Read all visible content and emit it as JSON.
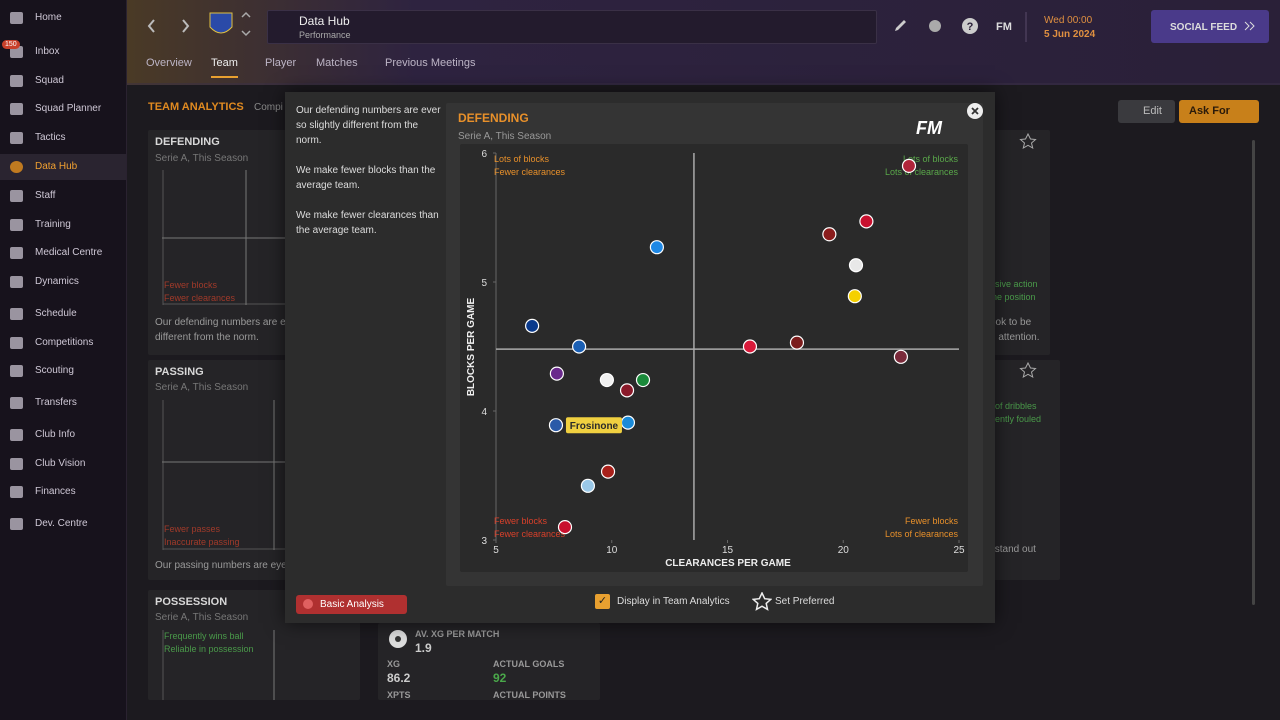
{
  "sidebar": {
    "badge": "150",
    "items": [
      "Home",
      "Inbox",
      "Squad",
      "Squad Planner",
      "Tactics",
      "Data Hub",
      "Staff",
      "Training",
      "Medical Centre",
      "Dynamics",
      "Schedule",
      "Competitions",
      "Scouting",
      "Transfers",
      "Club Info",
      "Club Vision",
      "Finances",
      "Dev. Centre"
    ],
    "active": 5
  },
  "topbar": {
    "title": "Data Hub",
    "subtitle": "Performance",
    "brand": "FM",
    "time": "Wed 00:00",
    "date": "5 Jun 2024",
    "social": "SOCIAL FEED"
  },
  "tabs": {
    "items": [
      "Overview",
      "Team",
      "Player",
      "Matches",
      "Previous Meetings"
    ],
    "active": 1
  },
  "background": {
    "heading": "TEAM ANALYTICS",
    "heading_more": "Compi",
    "edit": "Edit",
    "ask_for": "Ask For",
    "defending": {
      "title": "DEFENDING",
      "subtitle": "Serie A, This Season",
      "tag1": "Fewer blocks",
      "tag2": "Fewer clearances",
      "text1": "Our defending numbers are e",
      "text2": "different from the norm."
    },
    "passing": {
      "title": "PASSING",
      "subtitle": "Serie A, This Season",
      "tag1": "Fewer passes",
      "tag2": "Inaccurate passing",
      "text1": "Our passing numbers are eye"
    },
    "possession": {
      "title": "POSSESSION",
      "subtitle": "Serie A, This Season",
      "tag1": "Frequently wins ball",
      "tag2": "Reliable in possession"
    },
    "stats": {
      "xg_match_label": "AV. XG PER MATCH",
      "xg_match": "1.9",
      "xg_label": "XG",
      "xg": "86.2",
      "goals_label": "ACTUAL GOALS",
      "goals": "92",
      "xpts_label": "XPTS",
      "points_label": "ACTUAL POINTS"
    },
    "right": {
      "tag1": "nsive action",
      "tag2": "ine position",
      "text1": "ook to be",
      "text2": "d attention.",
      "tag3": "of dribbles",
      "tag4": "ently fouled",
      "text3": "s stand out"
    }
  },
  "modal": {
    "summary": [
      "Our defending numbers are ever so slightly different from the norm.",
      "We make fewer blocks than the average team.",
      "We make fewer clearances than the average team."
    ],
    "basic_analysis": "Basic Analysis",
    "display_option": "Display in Team Analytics",
    "set_preferred": "Set Preferred",
    "chart": {
      "type": "scatter",
      "title": "DEFENDING",
      "subtitle": "Serie A, This Season",
      "logo": "FM",
      "x_label": "CLEARANCES PER GAME",
      "y_label": "BLOCKS PER GAME",
      "xlim": [
        5,
        25
      ],
      "ylim": [
        3,
        6
      ],
      "xticks": [
        5,
        10,
        15,
        20,
        25
      ],
      "yticks": [
        3,
        4,
        5,
        6
      ],
      "x_average": 13.55,
      "y_average": 4.48,
      "quadrants": {
        "top_left": [
          "Lots of blocks",
          "Fewer clearances"
        ],
        "top_right": [
          "Lots of blocks",
          "Lots of clearances"
        ],
        "bottom_left": [
          "Fewer blocks",
          "Fewer clearances"
        ],
        "bottom_right": [
          "Fewer blocks",
          "Lots of clearances"
        ]
      },
      "x": [
        22.84,
        21.0,
        19.4,
        20.55,
        20.5,
        11.95,
        6.56,
        8.59,
        15.97,
        18.0,
        22.49,
        7.63,
        9.79,
        11.35,
        10.66,
        7.59,
        10.7,
        9.84,
        8.97,
        7.98
      ],
      "y": [
        5.9,
        5.47,
        5.37,
        5.13,
        4.89,
        5.27,
        4.66,
        4.5,
        4.5,
        4.53,
        4.42,
        4.29,
        4.24,
        4.24,
        4.16,
        3.89,
        3.91,
        3.53,
        3.42,
        3.1
      ],
      "colors": [
        "#b0243a",
        "#c8102e",
        "#8a1c1c",
        "#e8e8e8",
        "#f5d000",
        "#1e88e5",
        "#0a3a8c",
        "#1a5fb4",
        "#d91a3a",
        "#7b1c1c",
        "#7a2a3a",
        "#6a2a8c",
        "#f0f0f0",
        "#1a8a3a",
        "#8a1a2a",
        "#2a5aa8",
        "#1a8ad8",
        "#a8201a",
        "#9ac8e8",
        "#c8102e"
      ],
      "highlight": {
        "index": 15,
        "label": "Frosinone"
      }
    }
  }
}
